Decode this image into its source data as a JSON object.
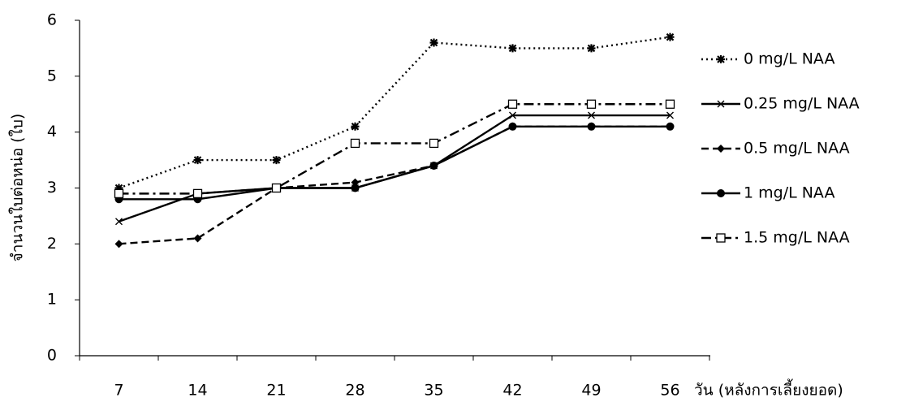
{
  "chart_data": {
    "type": "line",
    "x_label": "วัน (หลังการเลี้ยงยอด)",
    "y_label": "จำนวนใบต่อหน่อ (ใบ)",
    "categories": [
      "7",
      "14",
      "21",
      "28",
      "35",
      "42",
      "49",
      "56"
    ],
    "ylim": [
      0,
      6
    ],
    "yticks": [
      0,
      1,
      2,
      3,
      4,
      5,
      6
    ],
    "grid": false,
    "legend": "right",
    "series": [
      {
        "name": "0 mg/L NAA",
        "color": "#000000",
        "line_style": "dotted",
        "marker": "star",
        "values": [
          3.0,
          3.5,
          3.5,
          4.1,
          5.6,
          5.5,
          5.5,
          5.7
        ]
      },
      {
        "name": "0.25 mg/L NAA",
        "color": "#000000",
        "line_style": "solid",
        "marker": "x",
        "values": [
          2.4,
          2.9,
          3.0,
          3.0,
          3.4,
          4.3,
          4.3,
          4.3
        ]
      },
      {
        "name": "0.5 mg/L NAA",
        "color": "#000000",
        "line_style": "dashed",
        "marker": "diamond",
        "values": [
          2.0,
          2.1,
          3.0,
          3.1,
          3.4,
          4.1,
          4.1,
          4.1
        ]
      },
      {
        "name": "1 mg/L NAA",
        "color": "#000000",
        "line_style": "solid",
        "marker": "circle",
        "values": [
          2.8,
          2.8,
          3.0,
          3.0,
          3.4,
          4.1,
          4.1,
          4.1
        ]
      },
      {
        "name": "1.5 mg/L NAA",
        "color": "#000000",
        "line_style": "dashdot",
        "marker": "square",
        "values": [
          2.9,
          2.9,
          3.0,
          3.8,
          3.8,
          4.5,
          4.5,
          4.5
        ]
      }
    ]
  }
}
